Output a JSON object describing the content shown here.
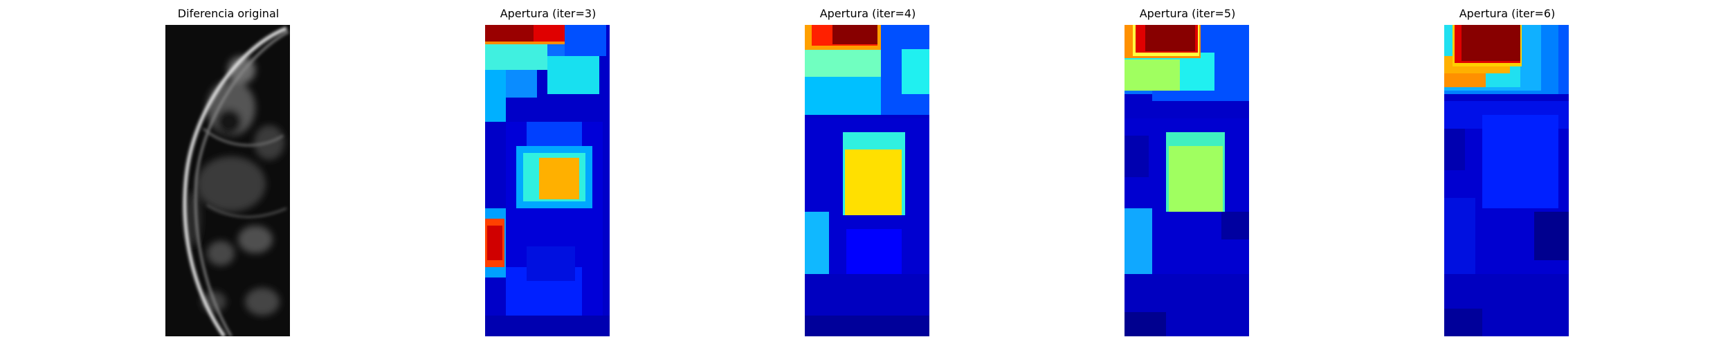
{
  "panels": [
    {
      "title": "Diferencia original",
      "colormap": "gray"
    },
    {
      "title": "Apertura (iter=3)",
      "colormap": "jet"
    },
    {
      "title": "Apertura (iter=4)",
      "colormap": "jet"
    },
    {
      "title": "Apertura (iter=5)",
      "colormap": "jet"
    },
    {
      "title": "Apertura (iter=6)",
      "colormap": "jet"
    }
  ],
  "colors": {
    "jet_dark_blue": "#00008f",
    "jet_blue": "#0000ff",
    "jet_cyan": "#00ffff",
    "jet_yellow": "#ffff00",
    "jet_red": "#ff0000",
    "jet_dark_red": "#800000"
  }
}
